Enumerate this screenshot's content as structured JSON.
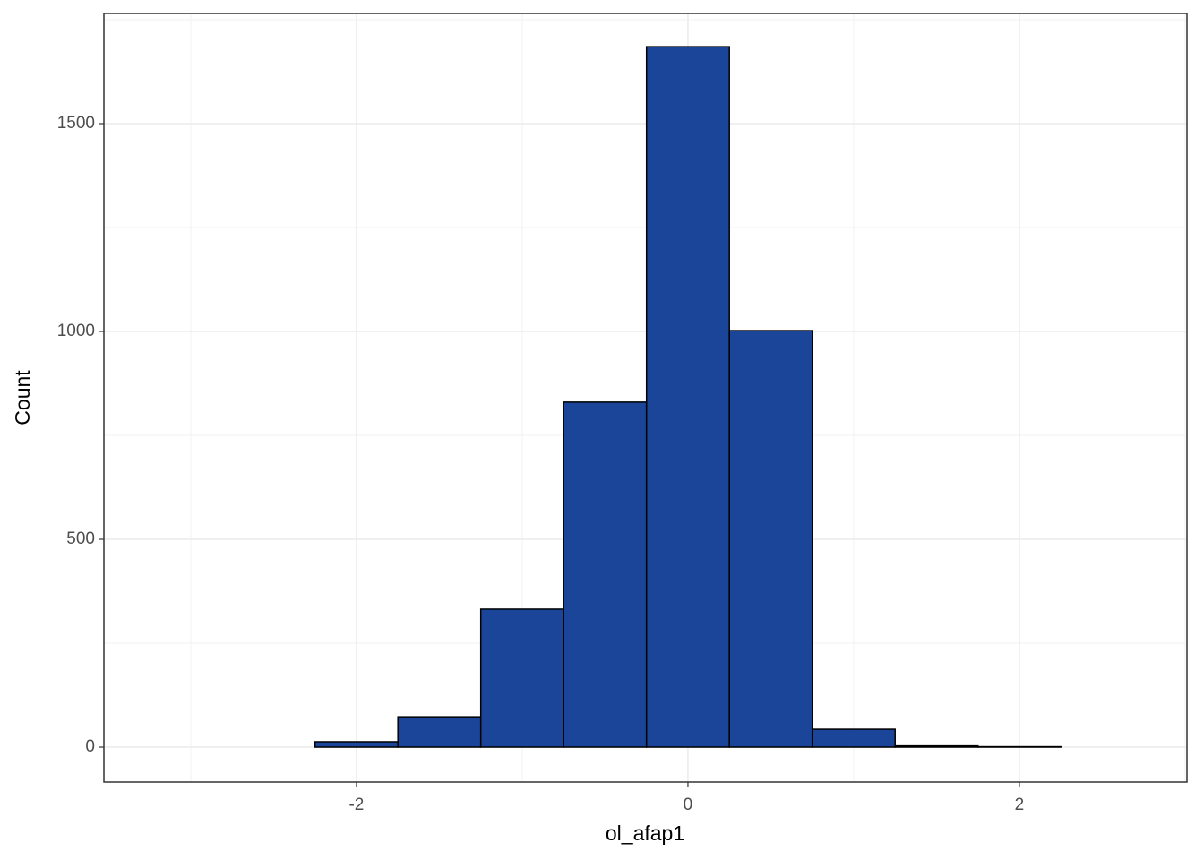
{
  "chart_data": {
    "type": "histogram",
    "x_label": "ol_afap1",
    "y_label": "Count",
    "bins": [
      -3.25,
      -2.75,
      -2.25,
      -1.75,
      -1.25,
      -0.75,
      -0.25,
      0.25,
      0.75,
      1.25,
      1.75,
      2.25,
      2.75
    ],
    "values": [
      0,
      0,
      13,
      73,
      332,
      830,
      1685,
      1002,
      43,
      3,
      1,
      0
    ],
    "color": "#1a4599",
    "xlim": [
      -3.524,
      3.011
    ],
    "xticks": [
      -2,
      0,
      2
    ],
    "ylim": [
      -84,
      1765
    ],
    "yticks": [
      0,
      500,
      1000,
      1500
    ],
    "grid": true
  }
}
